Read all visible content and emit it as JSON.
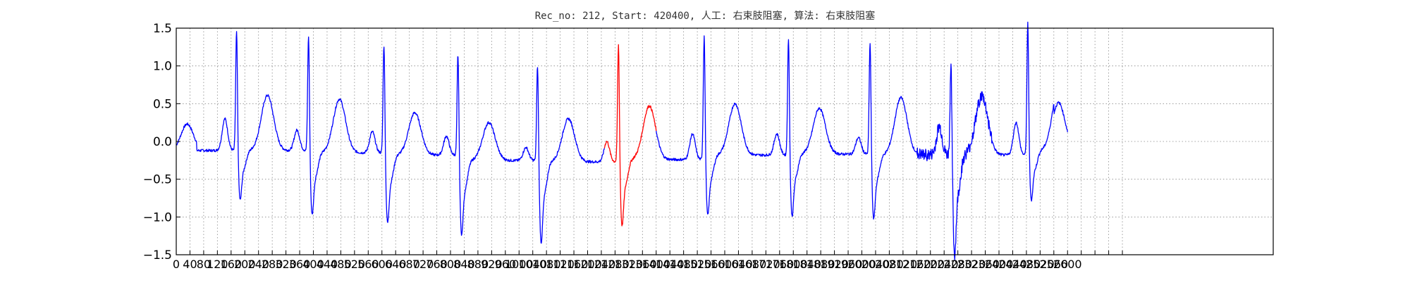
{
  "chart_data": {
    "type": "line",
    "title": "Rec_no: 212, Start: 420400, 人工: 右束肢阻塞, 算法: 右束肢阻塞",
    "xlabel": "",
    "ylabel": "",
    "xlim": [
      0,
      1600
    ],
    "ylim": [
      -1.5,
      1.5
    ],
    "grid": true,
    "grid_style": "dotted",
    "yticks": [
      -1.5,
      -1.0,
      -0.5,
      0.0,
      0.5,
      1.0,
      1.5
    ],
    "ytick_labels": [
      "−1.5",
      "−1.0",
      "−0.5",
      "0.0",
      "0.5",
      "1.0",
      "1.5"
    ],
    "xticks": [
      0,
      20,
      40,
      60,
      80,
      100,
      120,
      140,
      160,
      180,
      200,
      220,
      240,
      260,
      280,
      300,
      320,
      340,
      360,
      380,
      400,
      420,
      440,
      460,
      480,
      500,
      520,
      540,
      560,
      580,
      600,
      620,
      640,
      660,
      680,
      700,
      720,
      740,
      760,
      780,
      800,
      820,
      840,
      860,
      880,
      900,
      920,
      940,
      960,
      980,
      1000,
      1020,
      1040,
      1060,
      1080,
      1100,
      1120,
      1140,
      1160,
      1180,
      1200,
      1220,
      1240,
      1260,
      1280,
      1300,
      1320,
      1340,
      1360,
      1380
    ],
    "xtick_labels": [
      "0",
      "40",
      "80",
      "120",
      "160",
      "200",
      "240",
      "280",
      "320",
      "360",
      "400",
      "440",
      "480",
      "520",
      "560",
      "600",
      "640",
      "680",
      "720",
      "760",
      "800",
      "840",
      "880",
      "920",
      "960",
      "1000",
      "1040",
      "1080",
      "1120",
      "1160",
      "1200",
      "1240",
      "1280",
      "1320",
      "1360",
      "1400",
      "1440",
      "1480",
      "1520",
      "1560",
      "1600",
      "1640",
      "1680",
      "1720",
      "1760",
      "1800",
      "1840",
      "1880",
      "1920",
      "1960",
      "2000",
      "2040",
      "2080",
      "2120",
      "2160",
      "2200",
      "2240",
      "2280",
      "2320",
      "2360",
      "2400",
      "2440",
      "2480",
      "2520",
      "2560",
      "2600"
    ],
    "xticks_shown": [
      0,
      20,
      40,
      60,
      80,
      100,
      120,
      140,
      160,
      180,
      200,
      220,
      240,
      260,
      280,
      300,
      320,
      340,
      360,
      380,
      400,
      420,
      440,
      460,
      480,
      500,
      520,
      540,
      560,
      580,
      600,
      620,
      640,
      660,
      680,
      700,
      720,
      740,
      760,
      780,
      800,
      820,
      840,
      860,
      880,
      900,
      920,
      940,
      960,
      980,
      1000,
      1020,
      1040,
      1060,
      1080,
      1100,
      1120,
      1140,
      1160,
      1180,
      1200,
      1220,
      1240,
      1260,
      1280,
      1300
    ],
    "colors": {
      "normal": "#0000ff",
      "highlight": "#ff0000"
    },
    "beats": [
      {
        "r_x": 88,
        "r_amp": 1.3,
        "s_amp": -0.6,
        "t_amp": 0.36,
        "p_amp": 0.15,
        "base": -0.2
      },
      {
        "r_x": 193,
        "r_amp": 1.27,
        "s_amp": -0.75,
        "t_amp": 0.31,
        "p_amp": 0.0,
        "base": -0.25
      },
      {
        "r_x": 303,
        "r_amp": 1.21,
        "s_amp": -0.82,
        "t_amp": 0.13,
        "p_amp": -0.02,
        "base": -0.3
      },
      {
        "r_x": 411,
        "r_amp": 1.15,
        "s_amp": -0.9,
        "t_amp": 0.0,
        "p_amp": -0.08,
        "base": -0.42
      },
      {
        "r_x": 527,
        "r_amp": 1.07,
        "s_amp": -0.98,
        "t_amp": 0.05,
        "p_amp": -0.23,
        "base": -0.45
      },
      {
        "r_x": 645,
        "r_amp": 1.27,
        "s_amp": -0.8,
        "t_amp": 0.22,
        "p_amp": -0.15,
        "base": -0.4
      },
      {
        "r_x": 770,
        "r_amp": 1.32,
        "s_amp": -0.73,
        "t_amp": 0.25,
        "p_amp": -0.05,
        "base": -0.3
      },
      {
        "r_x": 893,
        "r_amp": 1.27,
        "s_amp": -0.75,
        "t_amp": 0.19,
        "p_amp": -0.05,
        "base": -0.28
      },
      {
        "r_x": 1012,
        "r_amp": 1.23,
        "s_amp": -0.77,
        "t_amp": 0.33,
        "p_amp": -0.1,
        "base": -0.3
      },
      {
        "r_x": 1130,
        "r_amp": 1.05,
        "s_amp": -1.22,
        "t_amp": 0.35,
        "p_amp": 0.05,
        "base": -0.3
      },
      {
        "r_x": 1242,
        "r_amp": 1.39,
        "s_amp": -0.6,
        "t_amp": 0.47,
        "p_amp": 0.1,
        "base": -0.2
      }
    ],
    "highlight_x_range": [
      625,
      700
    ],
    "end_x": 1300,
    "end_y": 0.03
  }
}
